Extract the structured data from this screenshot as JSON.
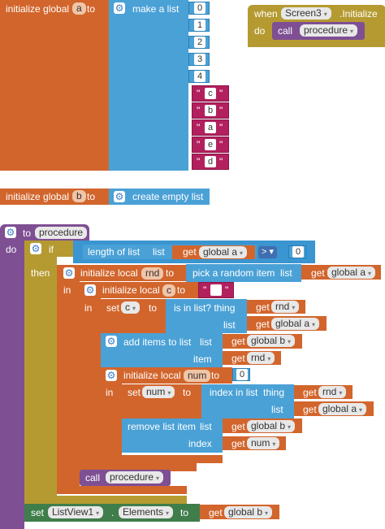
{
  "init_a": {
    "prefix": "initialize global",
    "var": "a",
    "to": "to",
    "make_list": "make a list",
    "numbers": [
      "0",
      "1",
      "2",
      "3",
      "4"
    ],
    "letters": [
      "c",
      "b",
      "a",
      "e",
      "d"
    ],
    "quote": "\""
  },
  "init_b": {
    "prefix": "initialize global",
    "var": "b",
    "to": "to",
    "empty": "create empty list"
  },
  "event": {
    "when": "when",
    "component": "Screen3",
    "event": ".Initialize",
    "do": "do",
    "call": "call",
    "proc": "procedure"
  },
  "proc": {
    "to": "to",
    "name": "procedure",
    "do": "do",
    "if": "if",
    "then": "then",
    "length": "length of list",
    "list": "list",
    "get": "get",
    "global_a": "global a",
    "op": ">",
    "zero": "0",
    "init_local_rnd": "initialize local",
    "rnd": "rnd",
    "to2": "to",
    "pick": "pick a random item",
    "in": "in",
    "init_local_c": "initialize local",
    "c": "c",
    "set": "set",
    "is_in": "is in list? thing",
    "add_items": "add items to list",
    "item": "item",
    "global_b": "global b",
    "init_local_num": "initialize local",
    "num": "num",
    "index_in": "index in list",
    "thing": "thing",
    "remove": "remove list item",
    "index": "index",
    "call": "call",
    "set_lv": "set",
    "listview": "ListView1",
    "elements": "Elements",
    "global_b2": "global b"
  }
}
